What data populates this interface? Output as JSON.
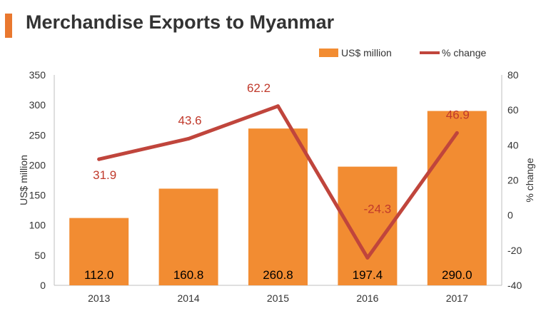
{
  "header": {
    "title": "Merchandise Exports to Myanmar"
  },
  "colors": {
    "accent": "#E9782F",
    "bar": "#F28C32",
    "line": "#C0453C",
    "line_label": "#C0392B",
    "axis_text": "#333333",
    "grid": "#D9D9D9"
  },
  "chart_data": {
    "type": "bar",
    "title": "Merchandise Exports to Myanmar",
    "categories": [
      "2013",
      "2014",
      "2015",
      "2016",
      "2017"
    ],
    "series": [
      {
        "name": "US$ million",
        "type": "bar",
        "axis": "left",
        "values": [
          112.0,
          160.8,
          260.8,
          197.4,
          290.0
        ],
        "labels": [
          "112.0",
          "160.8",
          "260.8",
          "197.4",
          "290.0"
        ]
      },
      {
        "name": "% change",
        "type": "line",
        "axis": "right",
        "values": [
          31.9,
          43.6,
          62.2,
          -24.3,
          46.9
        ],
        "labels": [
          "31.9",
          "43.6",
          "62.2",
          "-24.3",
          "46.9"
        ]
      }
    ],
    "ylabel": "US$ million",
    "ylabel_right": "% change",
    "ylim": [
      0,
      350
    ],
    "yticks": [
      0,
      50,
      100,
      150,
      200,
      250,
      300,
      350
    ],
    "ylim_right": [
      -40,
      80
    ],
    "yticks_right": [
      -40,
      -20,
      0,
      20,
      40,
      60,
      80
    ],
    "legend_position": "top-right",
    "grid": false
  }
}
